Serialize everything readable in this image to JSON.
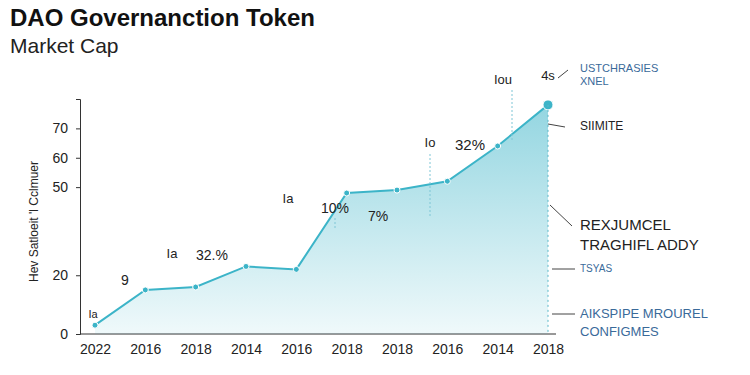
{
  "chart_data": {
    "type": "line",
    "title": "DAO Governanction Token",
    "subtitle": "Market Cap",
    "y_label": "Hev Satloeit 'l Cclmuer",
    "categories": [
      "2022",
      "2016",
      "2018",
      "2014",
      "2016",
      "2018",
      "2018",
      "2016",
      "2014",
      "2018"
    ],
    "values": [
      3,
      15,
      16,
      23,
      22,
      48,
      49,
      52,
      64,
      78
    ],
    "color": "#3cb4c8",
    "marker": "circle",
    "ylim": [
      0,
      80
    ],
    "yticks": [
      0,
      20,
      50,
      60,
      70
    ],
    "annotations": [
      "Ia",
      "9",
      "Ia",
      "32.%",
      "Ia",
      "10%",
      "7%",
      "Io",
      "32%",
      "Iou",
      "4s"
    ],
    "side_labels": [
      [
        "USTCHRASIES",
        "XNEL"
      ],
      [
        "SIIMITE"
      ],
      [
        "REXJUMCEL",
        "TRAGHIFL ADDY"
      ],
      [
        "TSYAS"
      ],
      [
        "AIKSPIPE MROUREL",
        "CONFIGMES"
      ]
    ]
  }
}
